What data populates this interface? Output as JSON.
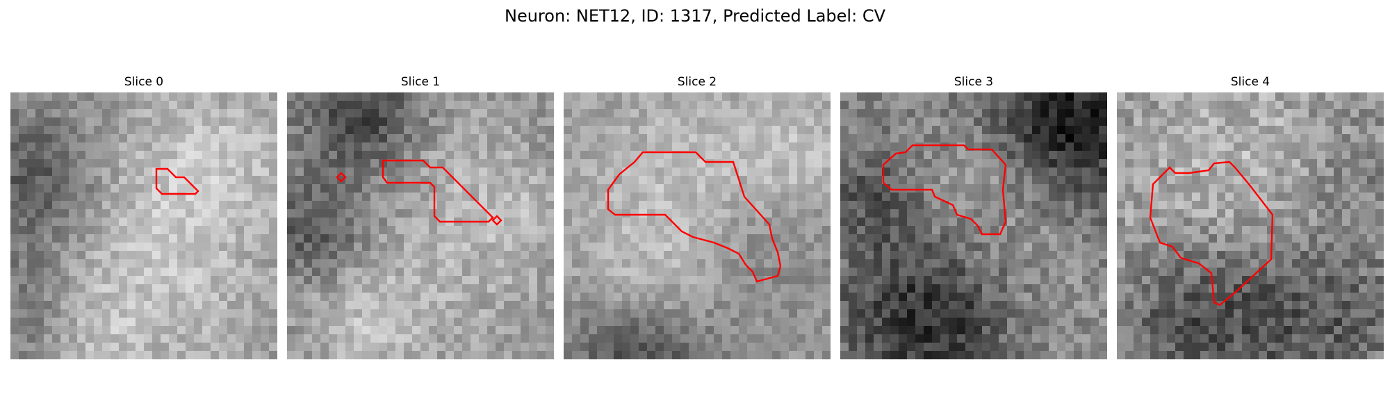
{
  "figure": {
    "suptitle": "Neuron: NET12, ID: 1317, Predicted Label: CV"
  },
  "colors": {
    "contour": "#ff0000",
    "background": "#ffffff"
  },
  "panels": [
    {
      "title": "Slice 0",
      "image": "grayscale-microscopy-patch",
      "overlay": "red-contour"
    },
    {
      "title": "Slice 1",
      "image": "grayscale-microscopy-patch",
      "overlay": "red-contour"
    },
    {
      "title": "Slice 2",
      "image": "grayscale-microscopy-patch",
      "overlay": "red-contour"
    },
    {
      "title": "Slice 3",
      "image": "grayscale-microscopy-patch",
      "overlay": "red-contour"
    },
    {
      "title": "Slice 4",
      "image": "grayscale-microscopy-patch",
      "overlay": "red-contour"
    }
  ]
}
